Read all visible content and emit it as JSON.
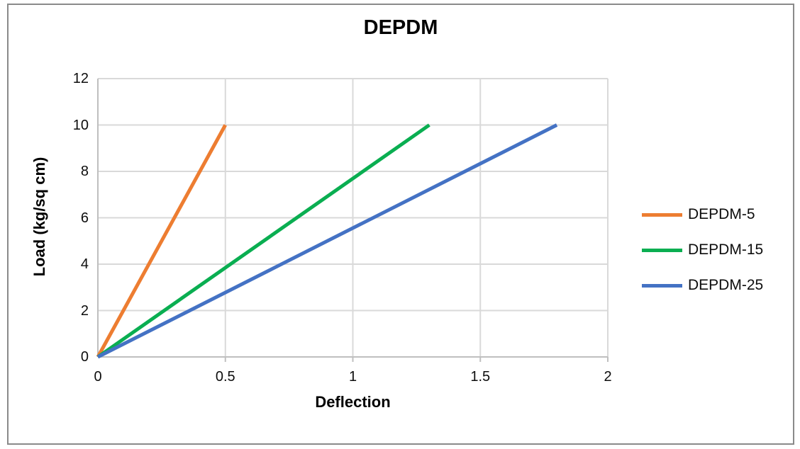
{
  "chart_data": {
    "type": "line",
    "title": "DEPDM",
    "xlabel": "Deflection",
    "ylabel": "Load (kg/sq cm)",
    "xlim": [
      0,
      2
    ],
    "ylim": [
      0,
      12
    ],
    "xticks": [
      0,
      0.5,
      1,
      1.5,
      2
    ],
    "yticks": [
      0,
      2,
      4,
      6,
      8,
      10,
      12
    ],
    "grid": true,
    "legend_position": "right",
    "series": [
      {
        "name": "DEPDM-5",
        "color": "#ED7D31",
        "points": [
          [
            0,
            0
          ],
          [
            0.5,
            10
          ]
        ]
      },
      {
        "name": "DEPDM-15",
        "color": "#0AAE51",
        "points": [
          [
            0,
            0
          ],
          [
            1.3,
            10
          ]
        ]
      },
      {
        "name": "DEPDM-25",
        "color": "#4472C4",
        "points": [
          [
            0,
            0
          ],
          [
            1.8,
            10
          ]
        ]
      }
    ],
    "colors": {
      "gridline": "#D9D9D9",
      "axis": "#BFBFBF",
      "frame_border": "#8A8A8A",
      "text": "#000000"
    }
  }
}
